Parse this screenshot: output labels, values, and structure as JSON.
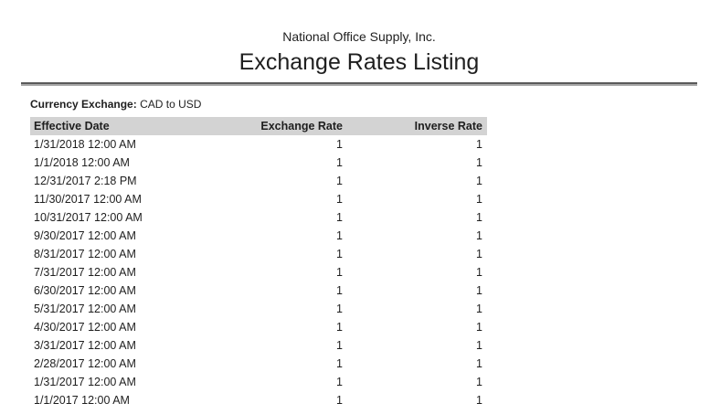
{
  "report": {
    "company": "National Office Supply, Inc.",
    "title": "Exchange Rates Listing",
    "filter": {
      "label": "Currency Exchange:",
      "value": "CAD to USD"
    }
  },
  "table": {
    "columns": [
      {
        "label": "Effective Date",
        "align": "left"
      },
      {
        "label": "Exchange Rate",
        "align": "right"
      },
      {
        "label": "Inverse Rate",
        "align": "right"
      }
    ],
    "rows": [
      {
        "effective_date": "1/31/2018 12:00 AM",
        "exchange_rate": "1",
        "inverse_rate": "1"
      },
      {
        "effective_date": "1/1/2018 12:00 AM",
        "exchange_rate": "1",
        "inverse_rate": "1"
      },
      {
        "effective_date": "12/31/2017 2:18 PM",
        "exchange_rate": "1",
        "inverse_rate": "1"
      },
      {
        "effective_date": "11/30/2017 12:00 AM",
        "exchange_rate": "1",
        "inverse_rate": "1"
      },
      {
        "effective_date": "10/31/2017 12:00 AM",
        "exchange_rate": "1",
        "inverse_rate": "1"
      },
      {
        "effective_date": "9/30/2017 12:00 AM",
        "exchange_rate": "1",
        "inverse_rate": "1"
      },
      {
        "effective_date": "8/31/2017 12:00 AM",
        "exchange_rate": "1",
        "inverse_rate": "1"
      },
      {
        "effective_date": "7/31/2017 12:00 AM",
        "exchange_rate": "1",
        "inverse_rate": "1"
      },
      {
        "effective_date": "6/30/2017 12:00 AM",
        "exchange_rate": "1",
        "inverse_rate": "1"
      },
      {
        "effective_date": "5/31/2017 12:00 AM",
        "exchange_rate": "1",
        "inverse_rate": "1"
      },
      {
        "effective_date": "4/30/2017 12:00 AM",
        "exchange_rate": "1",
        "inverse_rate": "1"
      },
      {
        "effective_date": "3/31/2017 12:00 AM",
        "exchange_rate": "1",
        "inverse_rate": "1"
      },
      {
        "effective_date": "2/28/2017 12:00 AM",
        "exchange_rate": "1",
        "inverse_rate": "1"
      },
      {
        "effective_date": "1/31/2017 12:00 AM",
        "exchange_rate": "1",
        "inverse_rate": "1"
      },
      {
        "effective_date": "1/1/2017 12:00 AM",
        "exchange_rate": "1",
        "inverse_rate": "1"
      }
    ]
  },
  "colors": {
    "table_header_bg": "#d3d3d3",
    "text": "#1f1f1f",
    "rule_dark": "#5a5a5a",
    "rule_light": "#a8a8a8"
  }
}
